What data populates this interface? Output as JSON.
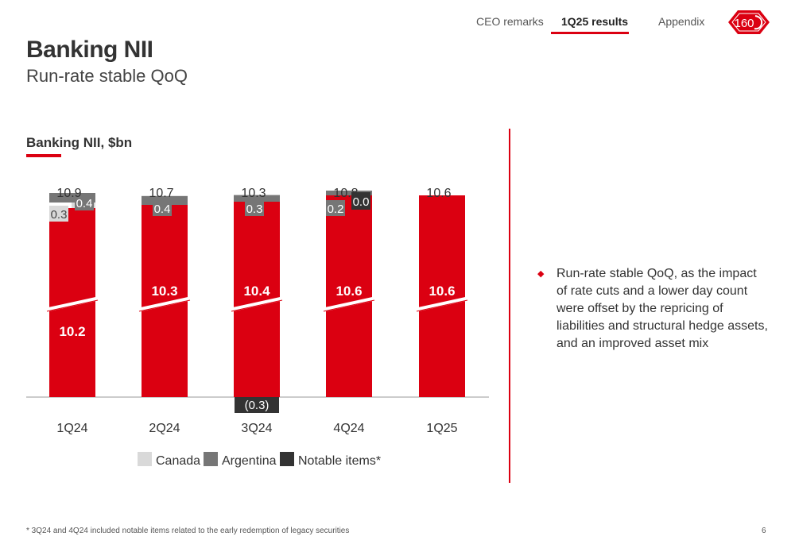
{
  "nav": {
    "items": [
      {
        "label": "CEO remarks"
      },
      {
        "label": "1Q25 results"
      },
      {
        "label": "Appendix"
      }
    ],
    "logo_text": "160"
  },
  "header": {
    "title": "Banking NII",
    "subtitle": "Run-rate stable QoQ"
  },
  "chart_title": "Banking NII, $bn",
  "chart_data": {
    "type": "bar",
    "stacked": true,
    "axis_break": true,
    "categories": [
      "1Q24",
      "2Q24",
      "3Q24",
      "4Q24",
      "1Q25"
    ],
    "totals": [
      "10.9",
      "10.7",
      "10.3",
      "10.8",
      "10.6"
    ],
    "series": [
      {
        "name": "",
        "color": "#db0011",
        "values": [
          10.2,
          10.3,
          10.4,
          10.6,
          10.6
        ],
        "labels": [
          "10.2",
          "10.3",
          "10.4",
          "10.6",
          "10.6"
        ]
      },
      {
        "name": "Canada",
        "color": "#d9d9d9",
        "values": [
          0.3,
          0,
          0,
          0,
          0
        ],
        "labels": [
          "0.3",
          "",
          "",
          "",
          ""
        ]
      },
      {
        "name": "Argentina",
        "color": "#767676",
        "values": [
          0.4,
          0.4,
          0.3,
          0.2,
          0
        ],
        "labels": [
          "0.4",
          "0.4",
          "0.3",
          "0.2",
          ""
        ]
      },
      {
        "name": "Notable items*",
        "color": "#333333",
        "values": [
          0,
          0,
          -0.3,
          0.0,
          0
        ],
        "labels": [
          "",
          "",
          "(0.3)",
          "0.0",
          ""
        ]
      }
    ],
    "legend": [
      "Canada",
      "Argentina",
      "Notable items*"
    ],
    "legend_position": "bottom"
  },
  "commentary": {
    "bullets": [
      "Run-rate stable QoQ, as the impact of rate cuts and a lower day count were offset by the repricing of liabilities and structural hedge assets, and an improved asset mix"
    ]
  },
  "footer": {
    "footnote": "* 3Q24 and 4Q24 included notable items related to the early redemption of legacy securities",
    "page_number": "6"
  },
  "colors": {
    "accent": "#db0011",
    "canada": "#d9d9d9",
    "argentina": "#767676",
    "notable": "#333333"
  }
}
